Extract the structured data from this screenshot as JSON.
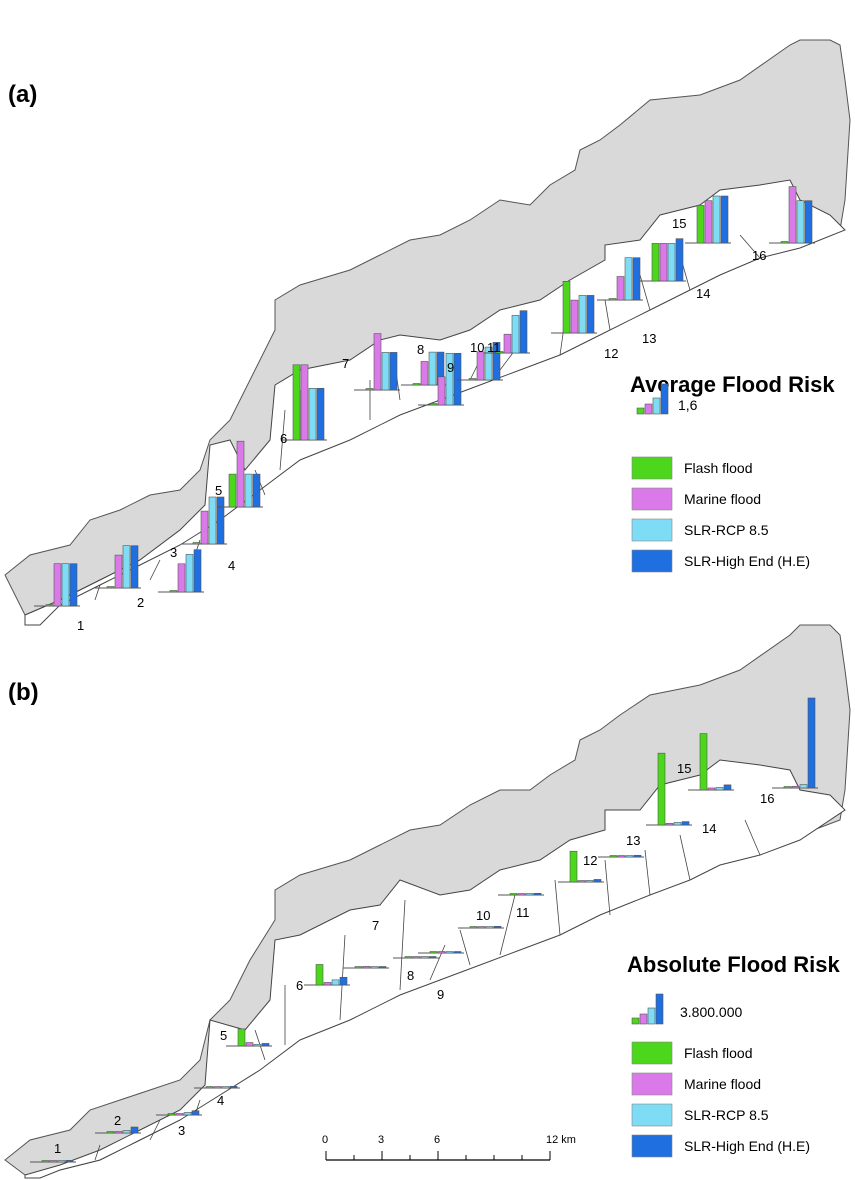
{
  "panels": [
    {
      "label": "(a)",
      "legend": {
        "title": "Average Flood Risk",
        "scale_value_label": "1,6",
        "items": [
          "Flash flood",
          "Marine flood",
          "SLR-RCP 8.5",
          "SLR-High End (H.E)"
        ]
      },
      "municipality_labels": [
        "1",
        "2",
        "3",
        "4",
        "5",
        "6",
        "7",
        "8",
        "9",
        "10",
        "11",
        "12",
        "13",
        "14",
        "15",
        "16"
      ]
    },
    {
      "label": "(b)",
      "legend": {
        "title": "Absolute Flood Risk",
        "scale_value_label": "3.800.000",
        "items": [
          "Flash flood",
          "Marine flood",
          "SLR-RCP 8.5",
          "SLR-High End (H.E)"
        ]
      },
      "municipality_labels": [
        "1",
        "2",
        "3",
        "4",
        "5",
        "6",
        "7",
        "8",
        "9",
        "10",
        "11",
        "12",
        "13",
        "14",
        "15",
        "16"
      ]
    }
  ],
  "series_colors": {
    "Flash flood": "#4cd61c",
    "Marine flood": "#d97ae8",
    "SLR-RCP 8.5": "#7fdcf5",
    "SLR-High End (H.E)": "#1f6fe0"
  },
  "scale_bar": {
    "ticks": [
      "0",
      "3",
      "6",
      "12"
    ],
    "unit": "km"
  },
  "chart_data": [
    {
      "type": "bar",
      "panel": "(a)",
      "title": "Average Flood Risk",
      "categories": [
        "1",
        "2",
        "3",
        "4",
        "5",
        "6",
        "7",
        "8",
        "9",
        "10",
        "11",
        "12",
        "13",
        "14",
        "15",
        "16"
      ],
      "series": [
        {
          "name": "Flash flood",
          "values": [
            0,
            0,
            0,
            0,
            0.7,
            1.6,
            0,
            0,
            0,
            0,
            0,
            1.1,
            0,
            0.8,
            0.8,
            0
          ]
        },
        {
          "name": "Marine flood",
          "values": [
            0.9,
            0.7,
            0.6,
            0.7,
            1.4,
            1.6,
            1.2,
            0.5,
            0.6,
            0.6,
            0.4,
            0.7,
            0.5,
            0.8,
            0.9,
            1.2
          ]
        },
        {
          "name": "SLR-RCP 8.5",
          "values": [
            0.9,
            0.9,
            0.8,
            1.0,
            0.7,
            1.1,
            0.8,
            0.7,
            1.1,
            0.7,
            0.8,
            0.8,
            0.9,
            0.8,
            1.0,
            0.9
          ]
        },
        {
          "name": "SLR-High End (H.E)",
          "values": [
            0.9,
            0.9,
            0.9,
            1.0,
            0.7,
            1.1,
            0.8,
            0.7,
            1.1,
            0.8,
            0.9,
            0.8,
            0.9,
            0.9,
            1.0,
            0.9
          ]
        }
      ],
      "legend_reference_value": 1.6
    },
    {
      "type": "bar",
      "panel": "(b)",
      "title": "Absolute Flood Risk",
      "categories": [
        "1",
        "2",
        "3",
        "4",
        "5",
        "6",
        "7",
        "8",
        "9",
        "10",
        "11",
        "12",
        "13",
        "14",
        "15",
        "16"
      ],
      "series": [
        {
          "name": "Flash flood",
          "values": [
            0,
            0,
            0,
            0,
            1000000,
            1200000,
            0,
            0,
            0,
            0,
            0,
            1800000,
            0,
            4200000,
            3300000,
            0
          ]
        },
        {
          "name": "Marine flood",
          "values": [
            30000,
            50000,
            40000,
            20000,
            200000,
            150000,
            100000,
            30000,
            40000,
            40000,
            20000,
            60000,
            30000,
            100000,
            120000,
            100000
          ]
        },
        {
          "name": "SLR-RCP 8.5",
          "values": [
            60000,
            150000,
            150000,
            60000,
            100000,
            300000,
            50000,
            60000,
            80000,
            60000,
            60000,
            100000,
            60000,
            150000,
            150000,
            200000
          ]
        },
        {
          "name": "SLR-High End (H.E)",
          "values": [
            100000,
            350000,
            250000,
            100000,
            150000,
            450000,
            50000,
            60000,
            80000,
            100000,
            100000,
            150000,
            100000,
            200000,
            300000,
            5800000
          ]
        }
      ],
      "legend_reference_value": 3800000
    }
  ]
}
